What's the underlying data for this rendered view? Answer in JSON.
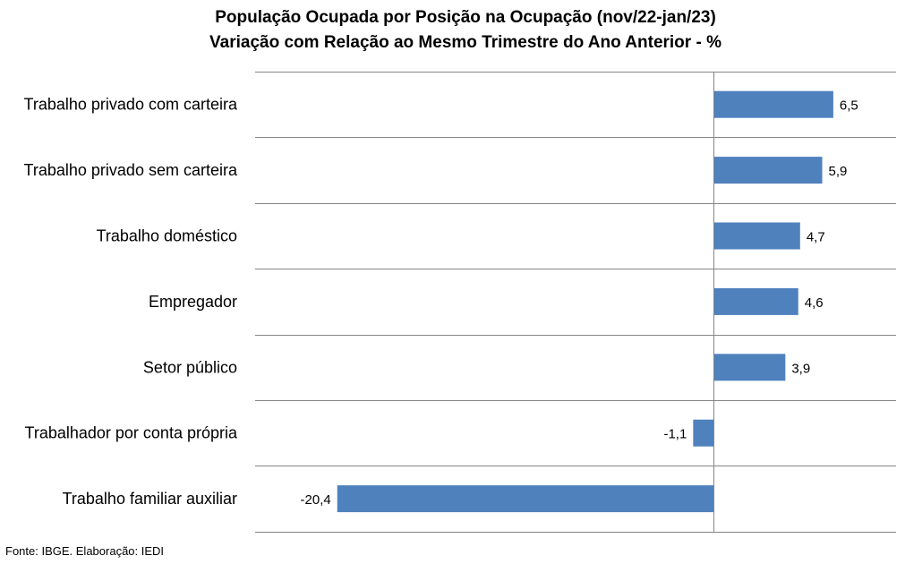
{
  "chart_data": {
    "type": "bar",
    "orientation": "horizontal",
    "title": "População Ocupada por Posição na Ocupação (nov/22-jan/23)",
    "subtitle": "Variação com Relação ao Mesmo Trimestre do Ano Anterior - %",
    "categories": [
      "Trabalho privado com carteira",
      "Trabalho privado sem carteira",
      "Trabalho doméstico",
      "Empregador",
      "Setor público",
      "Trabalhador por conta própria",
      "Trabalho familiar auxiliar"
    ],
    "values": [
      6.5,
      5.9,
      4.7,
      4.6,
      3.9,
      -1.1,
      -20.4
    ],
    "value_labels": [
      "6,5",
      "5,9",
      "4,7",
      "4,6",
      "3,9",
      "-1,1",
      "-20,4"
    ],
    "xlim": [
      -20.4,
      10
    ],
    "grid": true,
    "legend": "none",
    "bar_color": "#4f81bd"
  },
  "source": "Fonte: IBGE. Elaboração: IEDI"
}
